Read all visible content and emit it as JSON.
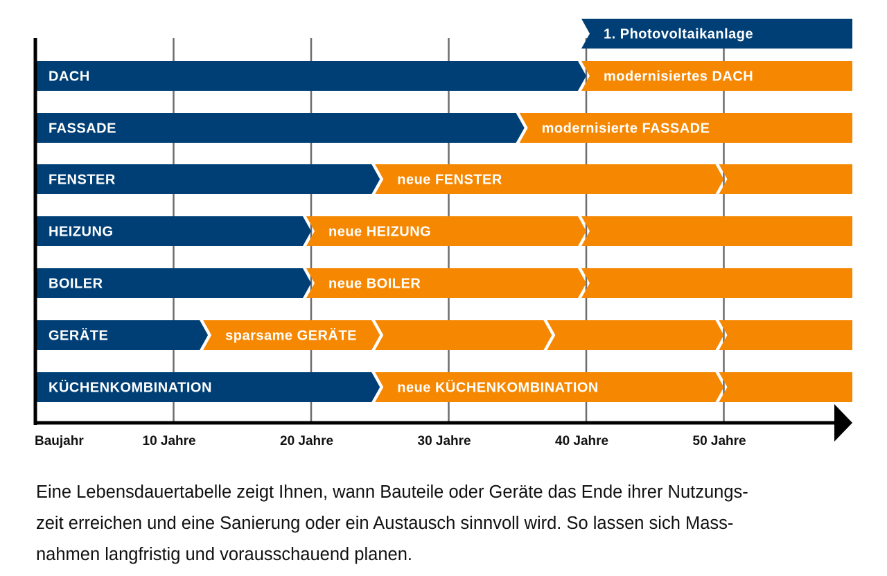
{
  "colors": {
    "original": "#003f75",
    "replacement": "#f68700",
    "axis": "#000000",
    "grid": "#6d6d6d",
    "segment_text": "#ffffff"
  },
  "chart_data": {
    "type": "timeline",
    "title": "Lebensdauertabelle",
    "xlabel": "",
    "ylabel": "",
    "x_unit": "Jahre",
    "xlim": [
      0,
      59
    ],
    "grid": true,
    "x_ticks": [
      {
        "value": 0,
        "label": "Baujahr"
      },
      {
        "value": 10,
        "label": "10 Jahre"
      },
      {
        "value": 20,
        "label": "20 Jahre"
      },
      {
        "value": 30,
        "label": "30 Jahre"
      },
      {
        "value": 40,
        "label": "40 Jahre"
      },
      {
        "value": 50,
        "label": "50 Jahre"
      }
    ],
    "rows": [
      {
        "name": "Photovoltaikanlage",
        "segments": [
          {
            "start": 40,
            "end": 59,
            "kind": "original",
            "label": "1. Photovoltaikanlage"
          }
        ]
      },
      {
        "name": "DACH",
        "segments": [
          {
            "start": 0,
            "end": 40,
            "kind": "original",
            "label": "DACH"
          },
          {
            "start": 40,
            "end": 59,
            "kind": "replacement",
            "label": "modernisiertes DACH"
          }
        ]
      },
      {
        "name": "FASSADE",
        "segments": [
          {
            "start": 0,
            "end": 35.5,
            "kind": "original",
            "label": "FASSADE"
          },
          {
            "start": 35.5,
            "end": 59,
            "kind": "replacement",
            "label": "modernisierte FASSADE"
          }
        ]
      },
      {
        "name": "FENSTER",
        "segments": [
          {
            "start": 0,
            "end": 25,
            "kind": "original",
            "label": "FENSTER"
          },
          {
            "start": 25,
            "end": 50,
            "kind": "replacement",
            "label": "neue FENSTER"
          },
          {
            "start": 50,
            "end": 59,
            "kind": "replacement",
            "label": ""
          }
        ]
      },
      {
        "name": "HEIZUNG",
        "segments": [
          {
            "start": 0,
            "end": 20,
            "kind": "original",
            "label": "HEIZUNG"
          },
          {
            "start": 20,
            "end": 40,
            "kind": "replacement",
            "label": "neue HEIZUNG"
          },
          {
            "start": 40,
            "end": 59,
            "kind": "replacement",
            "label": ""
          }
        ]
      },
      {
        "name": "BOILER",
        "segments": [
          {
            "start": 0,
            "end": 20,
            "kind": "original",
            "label": "BOILER"
          },
          {
            "start": 20,
            "end": 40,
            "kind": "replacement",
            "label": "neue BOILER"
          },
          {
            "start": 40,
            "end": 59,
            "kind": "replacement",
            "label": ""
          }
        ]
      },
      {
        "name": "GERÄTE",
        "segments": [
          {
            "start": 0,
            "end": 12.5,
            "kind": "original",
            "label": "GERÄTE"
          },
          {
            "start": 12.5,
            "end": 25,
            "kind": "replacement",
            "label": "sparsame GERÄTE"
          },
          {
            "start": 25,
            "end": 37.5,
            "kind": "replacement",
            "label": ""
          },
          {
            "start": 37.5,
            "end": 50,
            "kind": "replacement",
            "label": ""
          },
          {
            "start": 50,
            "end": 59,
            "kind": "replacement",
            "label": ""
          }
        ]
      },
      {
        "name": "KÜCHENKOMBINATION",
        "segments": [
          {
            "start": 0,
            "end": 25,
            "kind": "original",
            "label": "KÜCHENKOMBINATION"
          },
          {
            "start": 25,
            "end": 50,
            "kind": "replacement",
            "label": "neue KÜCHENKOMBINATION"
          },
          {
            "start": 50,
            "end": 59,
            "kind": "replacement",
            "label": ""
          }
        ]
      }
    ]
  },
  "caption": {
    "lines": [
      "Eine Lebensdauertabelle zeigt Ihnen, wann Bauteile oder Geräte das Ende ihrer Nutzungs-",
      "zeit erreichen und eine Sanierung oder ein Austausch sinnvoll wird. So lassen sich Mass-",
      "nahmen langfristig und vorausschauend planen."
    ]
  }
}
